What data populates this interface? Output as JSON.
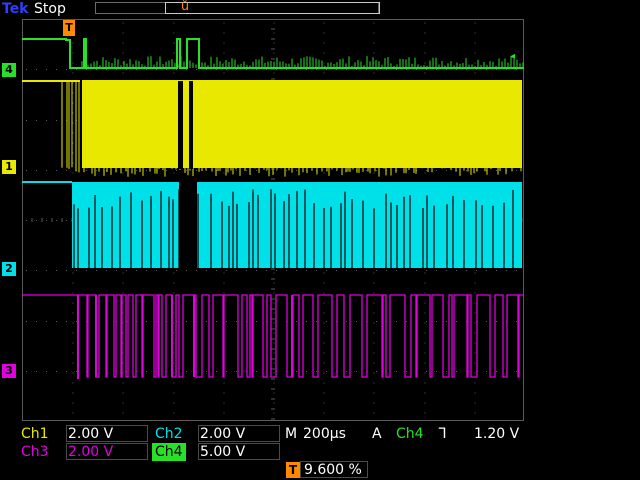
{
  "topbar": {
    "brand": "Tek",
    "run_state": "Stop",
    "trigger_position_glyph": "ů"
  },
  "markers": {
    "ch1": "1",
    "ch2": "2",
    "ch3": "3",
    "ch4": "4",
    "trigger_top": "T",
    "trigger_level_glyph": "◂"
  },
  "readouts": {
    "ch1_label": "Ch1",
    "ch1_value": "2.00 V",
    "ch2_label": "Ch2",
    "ch2_value": "2.00 V",
    "ch3_label": "Ch3",
    "ch3_value": "2.00 V",
    "ch4_label": "Ch4",
    "ch4_value": "5.00 V",
    "timebase_prefix": "M",
    "timebase_value": "200µs",
    "trigger_mode": "A",
    "trigger_source": "Ch4",
    "trigger_slope": "ᒣ",
    "trigger_level": "1.20 V",
    "trigger_position_icon": "T",
    "trigger_position": "9.600 %"
  },
  "colors": {
    "ch1": "#e8e800",
    "ch2": "#00e0e8",
    "ch3": "#e000e0",
    "ch4": "#28e028",
    "grid": "#5a5a5a",
    "trigger": "#ff8a00"
  },
  "icons": {
    "trigger-position": "orange-T-marker",
    "trigger-level": "green-left-arrow",
    "slope": "falling-edge-icon"
  }
}
